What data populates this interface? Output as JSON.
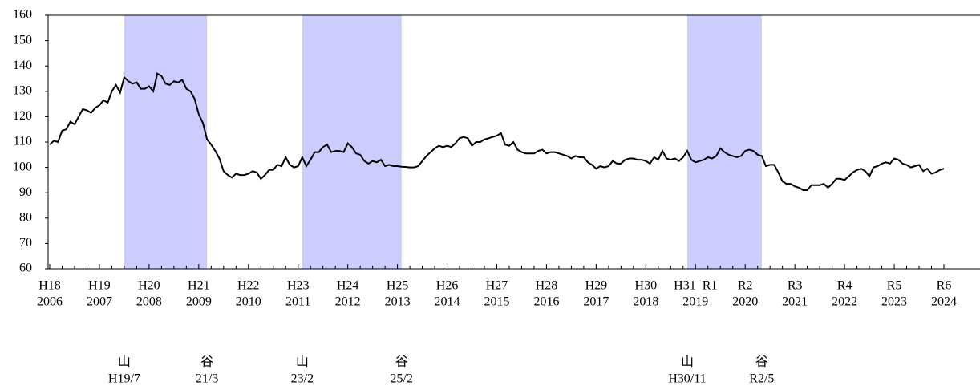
{
  "chart_data": {
    "type": "line",
    "color": "#000000",
    "band_color": "#ccccff",
    "ylim": [
      60,
      160
    ],
    "yticks": [
      60,
      70,
      80,
      90,
      100,
      110,
      120,
      130,
      140,
      150,
      160
    ],
    "years": [
      {
        "era": "H18",
        "year": "2006",
        "values": [
          109,
          110.5,
          110,
          114.5,
          115,
          118,
          117,
          120,
          123,
          122.5,
          121.5,
          123.5
        ]
      },
      {
        "era": "H19",
        "year": "2007",
        "values": [
          124.5,
          126.5,
          125.5,
          130,
          132.5,
          129.5,
          135.5,
          134,
          133,
          133.5,
          131,
          131
        ]
      },
      {
        "era": "H20",
        "year": "2008",
        "values": [
          132,
          130,
          137,
          136,
          133,
          132.5,
          134,
          133.5,
          134.5,
          131,
          130,
          127
        ]
      },
      {
        "era": "H21",
        "year": "2009",
        "values": [
          121,
          117.5,
          111,
          109,
          106.5,
          103.5,
          98.5,
          97,
          96,
          97.5,
          97,
          97
        ]
      },
      {
        "era": "H22",
        "year": "2010",
        "values": [
          97.5,
          98.5,
          98,
          95.5,
          97,
          99,
          99,
          101,
          100.5,
          104,
          101,
          100
        ]
      },
      {
        "era": "H23",
        "year": "2011",
        "values": [
          100.5,
          104,
          100.5,
          103,
          106,
          106,
          108,
          109,
          106,
          106.5,
          106.5,
          106
        ]
      },
      {
        "era": "H24",
        "year": "2012",
        "values": [
          109.5,
          108,
          105.5,
          105,
          102.5,
          101.5,
          102.5,
          102,
          103,
          100.5,
          101,
          100.5
        ]
      },
      {
        "era": "H25",
        "year": "2013",
        "values": [
          100.5,
          100.3,
          100.2,
          100,
          100,
          100.5,
          102.5,
          104.5,
          106,
          107.5,
          108.5,
          108
        ]
      },
      {
        "era": "H26",
        "year": "2014",
        "values": [
          108.5,
          108,
          109.5,
          111.5,
          112,
          111.5,
          108.5,
          110,
          110,
          111,
          111.5,
          112
        ]
      },
      {
        "era": "H27",
        "year": "2015",
        "values": [
          112.5,
          113.5,
          109,
          108.5,
          110,
          107,
          106,
          105.5,
          105.5,
          105.5,
          106.5,
          107
        ]
      },
      {
        "era": "H28",
        "year": "2016",
        "values": [
          105.5,
          106,
          106,
          105.5,
          105,
          104.5,
          103.5,
          104.5,
          104,
          104,
          102,
          101
        ]
      },
      {
        "era": "H29",
        "year": "2017",
        "values": [
          99.5,
          100.5,
          100,
          100.5,
          102.5,
          101.5,
          101.5,
          103,
          103.5,
          103.5,
          103,
          103
        ]
      },
      {
        "era": "H30",
        "year": "2018",
        "values": [
          102.5,
          101.5,
          104,
          103,
          106.5,
          103.5,
          103,
          103.5,
          102.5,
          104,
          106.5,
          103
        ]
      },
      {
        "era": "H31  R1",
        "year": "2019",
        "values": [
          102,
          102.5,
          103,
          104,
          103.5,
          104.5,
          107.5,
          106,
          105,
          104.5,
          104,
          104.5
        ]
      },
      {
        "era": "R2",
        "year": "2020",
        "values": [
          106.5,
          107,
          106.5,
          105,
          104.5,
          100.5,
          101,
          101,
          98,
          94.5,
          93.5,
          93.5
        ]
      },
      {
        "era": "R3",
        "year": "2021",
        "values": [
          92.5,
          92,
          91,
          91,
          93,
          93,
          93,
          93.5,
          92,
          93.5,
          95.5,
          95.5
        ]
      },
      {
        "era": "R4",
        "year": "2022",
        "values": [
          95,
          96.5,
          98,
          99,
          99.5,
          98.5,
          96.5,
          100,
          100.5,
          101.5,
          102,
          101.5
        ]
      },
      {
        "era": "R5",
        "year": "2023",
        "values": [
          103.5,
          103,
          101.5,
          101,
          100,
          100.5,
          101,
          98.5,
          99.5,
          97.5,
          98,
          99
        ]
      },
      {
        "era": "R6",
        "year": "2024",
        "values": [
          99.5
        ]
      }
    ],
    "recessions": [
      {
        "start": "2007-07",
        "end": "2009-03",
        "peak": "山",
        "peak_label": "H19/7",
        "trough": "谷",
        "trough_label": "21/3"
      },
      {
        "start": "2011-02",
        "end": "2013-02",
        "peak": "山",
        "peak_label": "23/2",
        "trough": "谷",
        "trough_label": "25/2"
      },
      {
        "start": "2018-11",
        "end": "2020-05",
        "peak": "山",
        "peak_label": "H30/11",
        "trough": "谷",
        "trough_label": "R2/5"
      }
    ]
  }
}
